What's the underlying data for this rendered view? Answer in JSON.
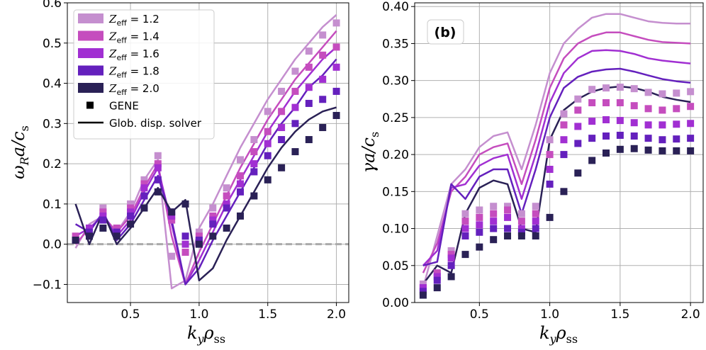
{
  "colors": {
    "Z12": "#c58fcf",
    "Z14": "#c54dbe",
    "Z16": "#a12fd2",
    "Z18": "#6420bd",
    "Z20": "#2a2156",
    "zero_line": "#aaaaaa",
    "grid": "#b0b0b0"
  },
  "legend": {
    "entries": [
      {
        "key": "Z12",
        "prefix": "Z",
        "sub": "eff",
        "suffix": " = 1.2"
      },
      {
        "key": "Z14",
        "prefix": "Z",
        "sub": "eff",
        "suffix": " = 1.4"
      },
      {
        "key": "Z16",
        "prefix": "Z",
        "sub": "eff",
        "suffix": " = 1.6"
      },
      {
        "key": "Z18",
        "prefix": "Z",
        "sub": "eff",
        "suffix": " = 1.8"
      },
      {
        "key": "Z20",
        "prefix": "Z",
        "sub": "eff",
        "suffix": " = 2.0"
      }
    ],
    "gene_label": "GENE",
    "solver_label": "Glob. disp. solver"
  },
  "chart_data": [
    {
      "type": "line",
      "xlabel": "k_y ρ_ss",
      "ylabel": "ω_R a / c_s",
      "xlim": [
        0.04,
        2.09
      ],
      "ylim": [
        -0.145,
        0.6
      ],
      "xticks": [
        "0.5",
        "1.0",
        "1.5",
        "2.0"
      ],
      "yticks": [
        "−0.1",
        "0.0",
        "0.1",
        "0.2",
        "0.3",
        "0.4",
        "0.5",
        "0.6"
      ],
      "zero_line": true,
      "x": [
        0.1,
        0.2,
        0.3,
        0.4,
        0.5,
        0.6,
        0.7,
        0.8,
        0.9,
        1.0,
        1.1,
        1.2,
        1.3,
        1.4,
        1.5,
        1.6,
        1.7,
        1.8,
        1.9,
        2.0
      ],
      "series": [
        {
          "name": "Z12",
          "solver": [
            -0.01,
            0.05,
            0.07,
            0.03,
            0.08,
            0.16,
            0.21,
            -0.11,
            -0.09,
            0.04,
            0.1,
            0.17,
            0.24,
            0.3,
            0.36,
            0.41,
            0.46,
            0.5,
            0.54,
            0.57
          ],
          "gene": [
            0.01,
            0.04,
            0.09,
            0.04,
            0.1,
            0.16,
            0.22,
            -0.03,
            -0.02,
            0.03,
            0.09,
            0.14,
            0.21,
            0.26,
            0.33,
            0.38,
            0.43,
            0.48,
            0.52,
            0.55
          ]
        },
        {
          "name": "Z14",
          "solver": [
            0.0,
            0.04,
            0.07,
            0.03,
            0.07,
            0.14,
            0.2,
            0.02,
            -0.1,
            -0.02,
            0.05,
            0.12,
            0.19,
            0.25,
            0.31,
            0.36,
            0.41,
            0.45,
            0.49,
            0.53
          ],
          "gene": [
            0.02,
            0.04,
            0.08,
            0.04,
            0.09,
            0.15,
            0.2,
            0.06,
            -0.02,
            0.02,
            0.07,
            0.12,
            0.17,
            0.23,
            0.28,
            0.33,
            0.38,
            0.44,
            0.47,
            0.49
          ]
        },
        {
          "name": "Z16",
          "solver": [
            0.02,
            0.04,
            0.07,
            0.02,
            0.06,
            0.13,
            0.19,
            0.05,
            -0.1,
            -0.04,
            0.03,
            0.1,
            0.16,
            0.22,
            0.28,
            0.33,
            0.38,
            0.42,
            0.46,
            0.49
          ],
          "gene": [
            0.01,
            0.04,
            0.07,
            0.03,
            0.08,
            0.14,
            0.19,
            0.07,
            0.0,
            0.01,
            0.06,
            0.1,
            0.15,
            0.2,
            0.25,
            0.29,
            0.34,
            0.39,
            0.41,
            0.44
          ]
        },
        {
          "name": "Z18",
          "solver": [
            0.05,
            0.03,
            0.08,
            0.01,
            0.05,
            0.11,
            0.17,
            0.06,
            -0.1,
            -0.06,
            0.01,
            0.07,
            0.13,
            0.19,
            0.25,
            0.3,
            0.34,
            0.39,
            0.42,
            0.46
          ],
          "gene": [
            0.01,
            0.03,
            0.06,
            0.03,
            0.07,
            0.12,
            0.16,
            0.08,
            0.02,
            0.01,
            0.05,
            0.09,
            0.13,
            0.18,
            0.22,
            0.26,
            0.3,
            0.35,
            0.36,
            0.38
          ]
        },
        {
          "name": "Z20",
          "solver": [
            0.1,
            0.0,
            0.08,
            0.0,
            0.04,
            0.09,
            0.14,
            0.08,
            0.11,
            -0.09,
            -0.06,
            0.01,
            0.07,
            0.13,
            0.19,
            0.24,
            0.28,
            0.31,
            0.33,
            0.34
          ],
          "gene": [
            0.01,
            0.02,
            0.04,
            0.02,
            0.05,
            0.09,
            0.13,
            0.08,
            0.1,
            0.0,
            0.02,
            0.04,
            0.07,
            0.12,
            0.16,
            0.19,
            0.23,
            0.26,
            0.29,
            0.32
          ]
        }
      ]
    },
    {
      "type": "line",
      "panel_label": "(b)",
      "xlabel": "k_y ρ_ss",
      "ylabel": "γ a / c_s",
      "xlim": [
        0.04,
        2.09
      ],
      "ylim": [
        0.0,
        0.405
      ],
      "xticks": [
        "0.5",
        "1.0",
        "1.5",
        "2.0"
      ],
      "yticks": [
        "0.00",
        "0.05",
        "0.10",
        "0.15",
        "0.20",
        "0.25",
        "0.30",
        "0.35",
        "0.40"
      ],
      "x": [
        0.1,
        0.2,
        0.3,
        0.4,
        0.5,
        0.6,
        0.7,
        0.8,
        0.9,
        1.0,
        1.1,
        1.2,
        1.3,
        1.4,
        1.5,
        1.6,
        1.7,
        1.8,
        1.9,
        2.0
      ],
      "series": [
        {
          "name": "Z12",
          "solver": [
            0.02,
            0.09,
            0.16,
            0.18,
            0.21,
            0.225,
            0.23,
            0.18,
            0.24,
            0.31,
            0.35,
            0.37,
            0.385,
            0.39,
            0.39,
            0.385,
            0.38,
            0.378,
            0.377,
            0.377
          ],
          "gene": [
            0.025,
            0.04,
            0.07,
            0.12,
            0.125,
            0.13,
            0.13,
            0.12,
            0.13,
            0.22,
            0.255,
            0.275,
            0.288,
            0.29,
            0.291,
            0.289,
            0.284,
            0.282,
            0.283,
            0.285
          ]
        },
        {
          "name": "Z14",
          "solver": [
            0.04,
            0.08,
            0.15,
            0.17,
            0.2,
            0.21,
            0.215,
            0.16,
            0.22,
            0.29,
            0.33,
            0.35,
            0.36,
            0.365,
            0.365,
            0.36,
            0.355,
            0.352,
            0.351,
            0.35
          ],
          "gene": [
            0.02,
            0.04,
            0.065,
            0.11,
            0.115,
            0.12,
            0.125,
            0.11,
            0.12,
            0.2,
            0.24,
            0.26,
            0.27,
            0.27,
            0.27,
            0.266,
            0.262,
            0.26,
            0.262,
            0.265
          ]
        },
        {
          "name": "Z16",
          "solver": [
            0.05,
            0.07,
            0.155,
            0.16,
            0.185,
            0.195,
            0.2,
            0.14,
            0.2,
            0.27,
            0.31,
            0.33,
            0.34,
            0.341,
            0.34,
            0.336,
            0.33,
            0.327,
            0.325,
            0.323
          ],
          "gene": [
            0.02,
            0.035,
            0.06,
            0.1,
            0.105,
            0.11,
            0.115,
            0.1,
            0.11,
            0.18,
            0.22,
            0.238,
            0.245,
            0.247,
            0.246,
            0.243,
            0.24,
            0.24,
            0.241,
            0.242
          ]
        },
        {
          "name": "Z18",
          "solver": [
            0.05,
            0.055,
            0.16,
            0.14,
            0.17,
            0.18,
            0.18,
            0.12,
            0.18,
            0.25,
            0.29,
            0.305,
            0.312,
            0.315,
            0.316,
            0.312,
            0.307,
            0.302,
            0.299,
            0.297
          ],
          "gene": [
            0.015,
            0.03,
            0.05,
            0.09,
            0.095,
            0.1,
            0.1,
            0.095,
            0.1,
            0.16,
            0.2,
            0.215,
            0.222,
            0.225,
            0.226,
            0.225,
            0.222,
            0.22,
            0.221,
            0.222
          ]
        },
        {
          "name": "Z20",
          "solver": [
            0.025,
            0.05,
            0.04,
            0.12,
            0.155,
            0.165,
            0.16,
            0.1,
            0.095,
            0.22,
            0.26,
            0.275,
            0.285,
            0.29,
            0.292,
            0.29,
            0.285,
            0.278,
            0.274,
            0.271
          ],
          "gene": [
            0.01,
            0.02,
            0.035,
            0.065,
            0.075,
            0.085,
            0.09,
            0.09,
            0.09,
            0.115,
            0.15,
            0.175,
            0.192,
            0.202,
            0.207,
            0.208,
            0.206,
            0.205,
            0.205,
            0.205
          ]
        }
      ]
    }
  ]
}
